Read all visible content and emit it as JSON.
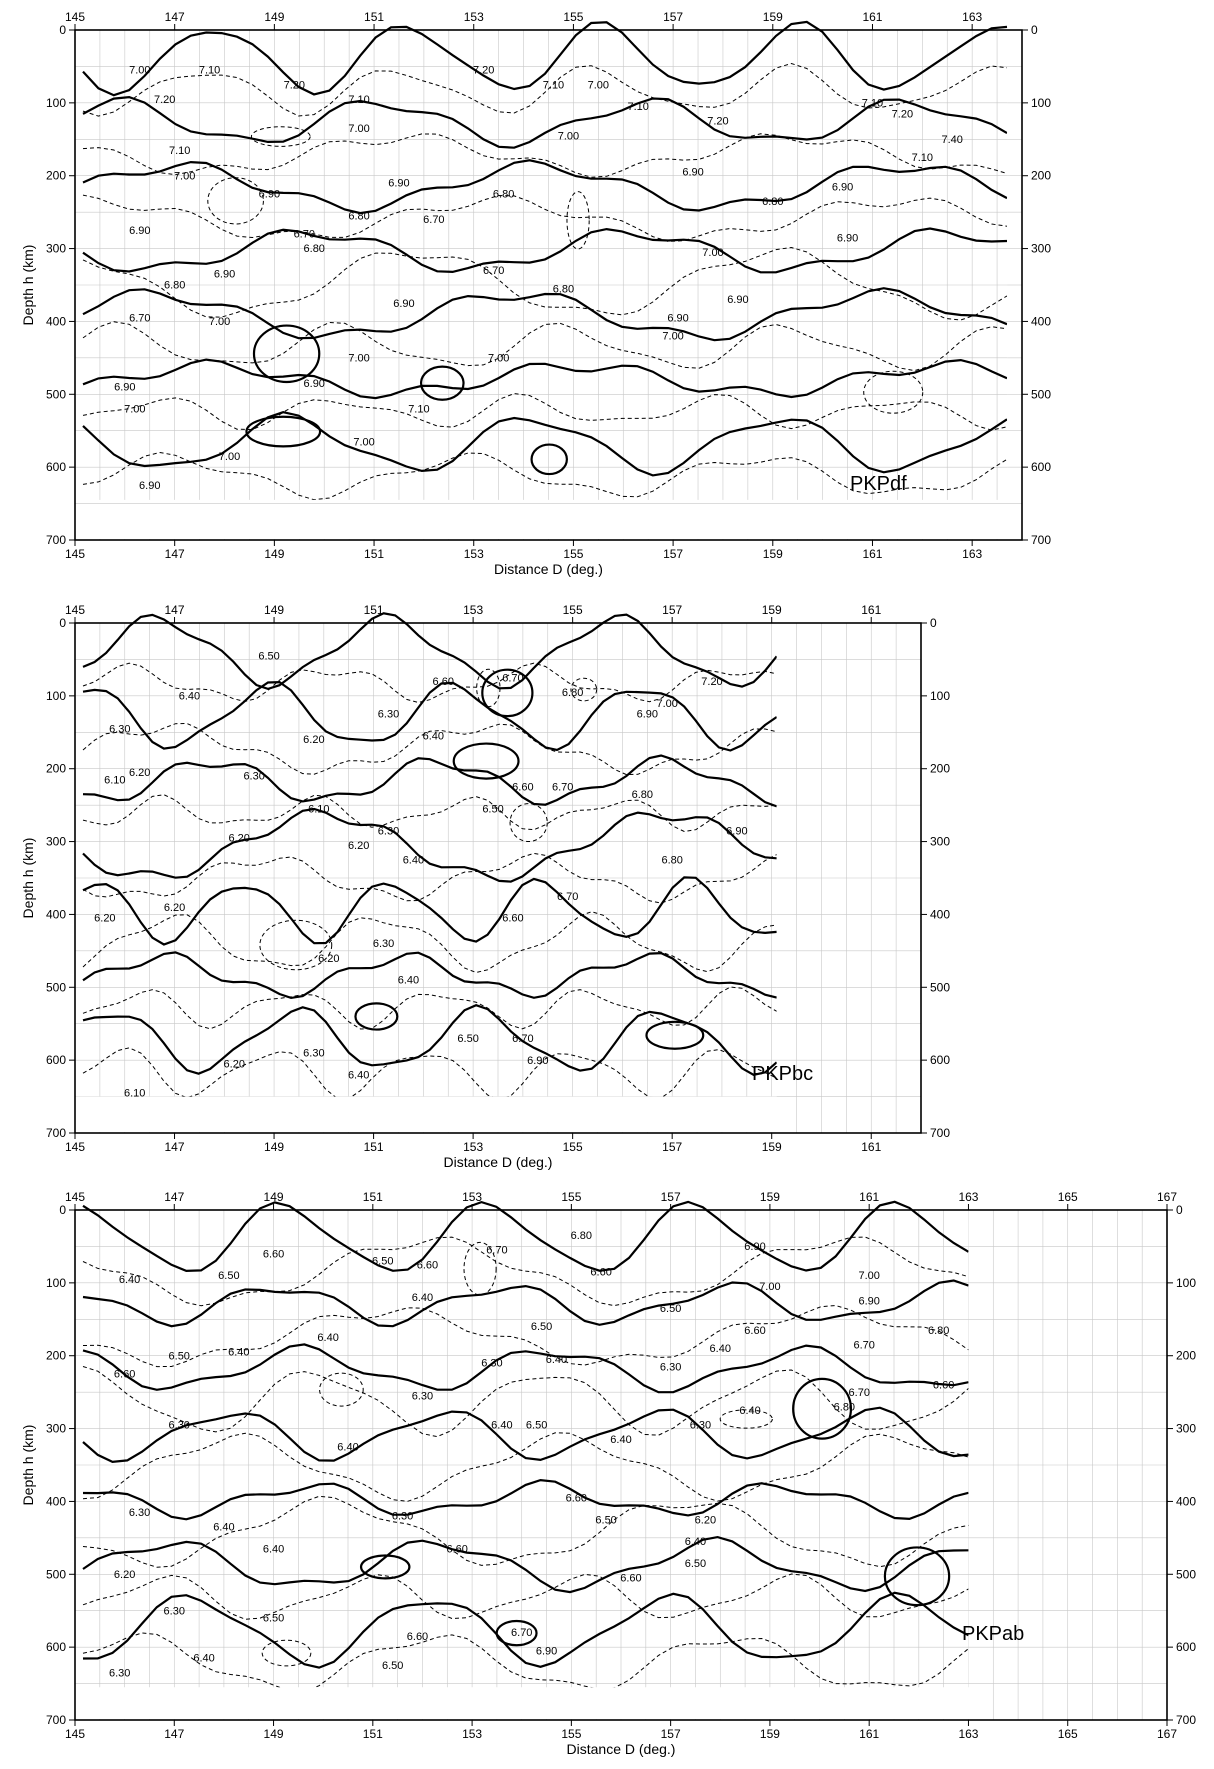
{
  "chart_data": [
    {
      "type": "contour",
      "label": "PKPdf",
      "xlabel": "Distance D (deg.)",
      "ylabel": "Depth h (km)",
      "xlim": [
        145,
        164
      ],
      "ylim": [
        0,
        700
      ],
      "x_ticks": [
        145,
        147,
        149,
        151,
        153,
        155,
        157,
        159,
        161,
        163
      ],
      "y_ticks": [
        0,
        100,
        200,
        300,
        400,
        500,
        600,
        700
      ],
      "grid": true,
      "contour_labels": [
        {
          "text": "7.00",
          "x": 146.3,
          "y": 60
        },
        {
          "text": "7.10",
          "x": 147.7,
          "y": 60
        },
        {
          "text": "7.20",
          "x": 146.8,
          "y": 100
        },
        {
          "text": "7.20",
          "x": 149.4,
          "y": 80
        },
        {
          "text": "7.20",
          "x": 153.2,
          "y": 60
        },
        {
          "text": "7.10",
          "x": 154.6,
          "y": 80
        },
        {
          "text": "7.00",
          "x": 155.5,
          "y": 80
        },
        {
          "text": "7.10",
          "x": 150.7,
          "y": 100
        },
        {
          "text": "7.00",
          "x": 150.7,
          "y": 140
        },
        {
          "text": "7.10",
          "x": 147.1,
          "y": 170
        },
        {
          "text": "7.00",
          "x": 147.2,
          "y": 205
        },
        {
          "text": "7.00",
          "x": 154.9,
          "y": 150
        },
        {
          "text": "7.10",
          "x": 156.3,
          "y": 110
        },
        {
          "text": "7.20",
          "x": 157.9,
          "y": 130
        },
        {
          "text": "7.10",
          "x": 161.0,
          "y": 105
        },
        {
          "text": "7.20",
          "x": 161.6,
          "y": 120
        },
        {
          "text": "7.40",
          "x": 162.6,
          "y": 155
        },
        {
          "text": "7.10",
          "x": 162.0,
          "y": 180
        },
        {
          "text": "6.90",
          "x": 151.5,
          "y": 215
        },
        {
          "text": "6.80",
          "x": 150.7,
          "y": 260
        },
        {
          "text": "6.90",
          "x": 148.9,
          "y": 230
        },
        {
          "text": "6.70",
          "x": 149.6,
          "y": 285
        },
        {
          "text": "6.80",
          "x": 149.8,
          "y": 305
        },
        {
          "text": "6.90",
          "x": 146.3,
          "y": 280
        },
        {
          "text": "6.70",
          "x": 152.2,
          "y": 265
        },
        {
          "text": "6.80",
          "x": 153.6,
          "y": 230
        },
        {
          "text": "6.70",
          "x": 153.4,
          "y": 335
        },
        {
          "text": "6.80",
          "x": 154.8,
          "y": 360
        },
        {
          "text": "6.90",
          "x": 151.6,
          "y": 380
        },
        {
          "text": "6.90",
          "x": 148.0,
          "y": 340
        },
        {
          "text": "6.80",
          "x": 147.0,
          "y": 355
        },
        {
          "text": "6.70",
          "x": 146.3,
          "y": 400
        },
        {
          "text": "7.00",
          "x": 147.9,
          "y": 405
        },
        {
          "text": "7.00",
          "x": 150.7,
          "y": 455
        },
        {
          "text": "7.00",
          "x": 153.5,
          "y": 455
        },
        {
          "text": "6.90",
          "x": 157.1,
          "y": 400
        },
        {
          "text": "7.00",
          "x": 157.0,
          "y": 425
        },
        {
          "text": "6.90",
          "x": 157.4,
          "y": 200
        },
        {
          "text": "6.80",
          "x": 159.0,
          "y": 240
        },
        {
          "text": "6.90",
          "x": 160.4,
          "y": 220
        },
        {
          "text": "7.00",
          "x": 157.8,
          "y": 310
        },
        {
          "text": "6.90",
          "x": 158.3,
          "y": 375
        },
        {
          "text": "6.90",
          "x": 160.5,
          "y": 290
        },
        {
          "text": "6.90",
          "x": 149.8,
          "y": 490
        },
        {
          "text": "6.90",
          "x": 146.0,
          "y": 495
        },
        {
          "text": "7.00",
          "x": 146.2,
          "y": 525
        },
        {
          "text": "7.10",
          "x": 151.9,
          "y": 525
        },
        {
          "text": "7.00",
          "x": 150.8,
          "y": 570
        },
        {
          "text": "7.00",
          "x": 148.1,
          "y": 590
        },
        {
          "text": "6.90",
          "x": 146.5,
          "y": 630
        }
      ]
    },
    {
      "type": "contour",
      "label": "PKPbc",
      "xlabel": "Distance D (deg.)",
      "ylabel": "Depth h (km)",
      "xlim": [
        145,
        162
      ],
      "ylim": [
        0,
        700
      ],
      "x_ticks": [
        145,
        147,
        149,
        151,
        153,
        155,
        157,
        159,
        161
      ],
      "y_ticks": [
        0,
        100,
        200,
        300,
        400,
        500,
        600,
        700
      ],
      "grid": true,
      "contour_labels": [
        {
          "text": "6.50",
          "x": 148.9,
          "y": 50
        },
        {
          "text": "6.40",
          "x": 147.3,
          "y": 105
        },
        {
          "text": "6.60",
          "x": 152.4,
          "y": 85
        },
        {
          "text": "6.70",
          "x": 153.8,
          "y": 80
        },
        {
          "text": "6.80",
          "x": 155.0,
          "y": 100
        },
        {
          "text": "6.90",
          "x": 156.5,
          "y": 130
        },
        {
          "text": "7.00",
          "x": 156.9,
          "y": 115
        },
        {
          "text": "7.20",
          "x": 157.8,
          "y": 85
        },
        {
          "text": "6.30",
          "x": 145.9,
          "y": 150
        },
        {
          "text": "6.30",
          "x": 151.3,
          "y": 130
        },
        {
          "text": "6.20",
          "x": 149.8,
          "y": 165
        },
        {
          "text": "6.40",
          "x": 152.2,
          "y": 160
        },
        {
          "text": "6.20",
          "x": 146.3,
          "y": 210
        },
        {
          "text": "6.10",
          "x": 145.8,
          "y": 220
        },
        {
          "text": "6.30",
          "x": 148.6,
          "y": 215
        },
        {
          "text": "6.10",
          "x": 149.9,
          "y": 260
        },
        {
          "text": "6.50",
          "x": 153.4,
          "y": 260
        },
        {
          "text": "6.60",
          "x": 154.0,
          "y": 230
        },
        {
          "text": "6.70",
          "x": 154.8,
          "y": 230
        },
        {
          "text": "6.80",
          "x": 156.4,
          "y": 240
        },
        {
          "text": "6.90",
          "x": 158.3,
          "y": 290
        },
        {
          "text": "6.80",
          "x": 157.0,
          "y": 330
        },
        {
          "text": "6.20",
          "x": 148.3,
          "y": 300
        },
        {
          "text": "6.30",
          "x": 151.3,
          "y": 290
        },
        {
          "text": "6.20",
          "x": 150.7,
          "y": 310
        },
        {
          "text": "6.40",
          "x": 151.8,
          "y": 330
        },
        {
          "text": "6.20",
          "x": 147.0,
          "y": 395
        },
        {
          "text": "6.20",
          "x": 145.6,
          "y": 410
        },
        {
          "text": "6.60",
          "x": 153.8,
          "y": 410
        },
        {
          "text": "6.70",
          "x": 154.9,
          "y": 380
        },
        {
          "text": "6.30",
          "x": 151.2,
          "y": 445
        },
        {
          "text": "6.20",
          "x": 150.1,
          "y": 465
        },
        {
          "text": "6.40",
          "x": 151.7,
          "y": 495
        },
        {
          "text": "6.50",
          "x": 152.9,
          "y": 575
        },
        {
          "text": "6.70",
          "x": 154.0,
          "y": 575
        },
        {
          "text": "6.90",
          "x": 154.3,
          "y": 605
        },
        {
          "text": "6.30",
          "x": 149.8,
          "y": 595
        },
        {
          "text": "6.20",
          "x": 148.2,
          "y": 610
        },
        {
          "text": "6.40",
          "x": 150.7,
          "y": 625
        },
        {
          "text": "6.10",
          "x": 146.2,
          "y": 650
        }
      ]
    },
    {
      "type": "contour",
      "label": "PKPab",
      "xlabel": "Distance D (deg.)",
      "ylabel": "Depth h (km)",
      "xlim": [
        145,
        167
      ],
      "ylim": [
        0,
        700
      ],
      "x_ticks": [
        145,
        147,
        149,
        151,
        153,
        155,
        157,
        159,
        161,
        163,
        165,
        167
      ],
      "y_ticks": [
        0,
        100,
        200,
        300,
        400,
        500,
        600,
        700
      ],
      "grid": true,
      "contour_labels": [
        {
          "text": "6.80",
          "x": 155.2,
          "y": 40
        },
        {
          "text": "6.70",
          "x": 153.5,
          "y": 60
        },
        {
          "text": "6.60",
          "x": 149.0,
          "y": 65
        },
        {
          "text": "6.50",
          "x": 148.1,
          "y": 95
        },
        {
          "text": "6.40",
          "x": 146.1,
          "y": 100
        },
        {
          "text": "6.50",
          "x": 151.2,
          "y": 75
        },
        {
          "text": "6.60",
          "x": 152.1,
          "y": 80
        },
        {
          "text": "6.40",
          "x": 152.0,
          "y": 125
        },
        {
          "text": "6.60",
          "x": 155.6,
          "y": 90
        },
        {
          "text": "6.50",
          "x": 157.0,
          "y": 140
        },
        {
          "text": "6.50",
          "x": 154.4,
          "y": 165
        },
        {
          "text": "6.90",
          "x": 158.7,
          "y": 55
        },
        {
          "text": "7.00",
          "x": 159.0,
          "y": 110
        },
        {
          "text": "7.00",
          "x": 161.0,
          "y": 95
        },
        {
          "text": "6.90",
          "x": 161.0,
          "y": 130
        },
        {
          "text": "6.80",
          "x": 162.4,
          "y": 170
        },
        {
          "text": "6.70",
          "x": 160.9,
          "y": 190
        },
        {
          "text": "6.60",
          "x": 158.7,
          "y": 170
        },
        {
          "text": "6.40",
          "x": 158.0,
          "y": 195
        },
        {
          "text": "6.30",
          "x": 157.0,
          "y": 220
        },
        {
          "text": "6.40",
          "x": 150.1,
          "y": 180
        },
        {
          "text": "6.40",
          "x": 148.3,
          "y": 200
        },
        {
          "text": "6.50",
          "x": 147.1,
          "y": 205
        },
        {
          "text": "6.60",
          "x": 146.0,
          "y": 230
        },
        {
          "text": "6.30",
          "x": 153.4,
          "y": 215
        },
        {
          "text": "6.40",
          "x": 154.7,
          "y": 210
        },
        {
          "text": "6.30",
          "x": 152.0,
          "y": 260
        },
        {
          "text": "6.70",
          "x": 160.8,
          "y": 255
        },
        {
          "text": "6.80",
          "x": 160.5,
          "y": 275
        },
        {
          "text": "6.60",
          "x": 162.5,
          "y": 245
        },
        {
          "text": "6.40",
          "x": 158.6,
          "y": 280
        },
        {
          "text": "6.30",
          "x": 157.6,
          "y": 300
        },
        {
          "text": "6.30",
          "x": 147.1,
          "y": 300
        },
        {
          "text": "6.40",
          "x": 150.5,
          "y": 330
        },
        {
          "text": "6.40",
          "x": 153.6,
          "y": 300
        },
        {
          "text": "6.50",
          "x": 154.3,
          "y": 300
        },
        {
          "text": "6.40",
          "x": 156.0,
          "y": 320
        },
        {
          "text": "6.60",
          "x": 155.1,
          "y": 400
        },
        {
          "text": "6.30",
          "x": 151.6,
          "y": 425
        },
        {
          "text": "6.30",
          "x": 146.3,
          "y": 420
        },
        {
          "text": "6.40",
          "x": 148.0,
          "y": 440
        },
        {
          "text": "6.40",
          "x": 149.0,
          "y": 470
        },
        {
          "text": "6.50",
          "x": 155.7,
          "y": 430
        },
        {
          "text": "6.20",
          "x": 157.7,
          "y": 430
        },
        {
          "text": "6.40",
          "x": 157.5,
          "y": 460
        },
        {
          "text": "6.50",
          "x": 157.5,
          "y": 490
        },
        {
          "text": "6.60",
          "x": 156.2,
          "y": 510
        },
        {
          "text": "6.60",
          "x": 152.7,
          "y": 470
        },
        {
          "text": "6.20",
          "x": 146.0,
          "y": 505
        },
        {
          "text": "6.30",
          "x": 147.0,
          "y": 555
        },
        {
          "text": "6.50",
          "x": 149.0,
          "y": 565
        },
        {
          "text": "6.60",
          "x": 151.9,
          "y": 590
        },
        {
          "text": "6.70",
          "x": 154.0,
          "y": 585
        },
        {
          "text": "6.90",
          "x": 154.5,
          "y": 610
        },
        {
          "text": "6.40",
          "x": 147.6,
          "y": 620
        },
        {
          "text": "6.30",
          "x": 145.9,
          "y": 640
        },
        {
          "text": "6.50",
          "x": 151.4,
          "y": 630
        }
      ]
    }
  ]
}
